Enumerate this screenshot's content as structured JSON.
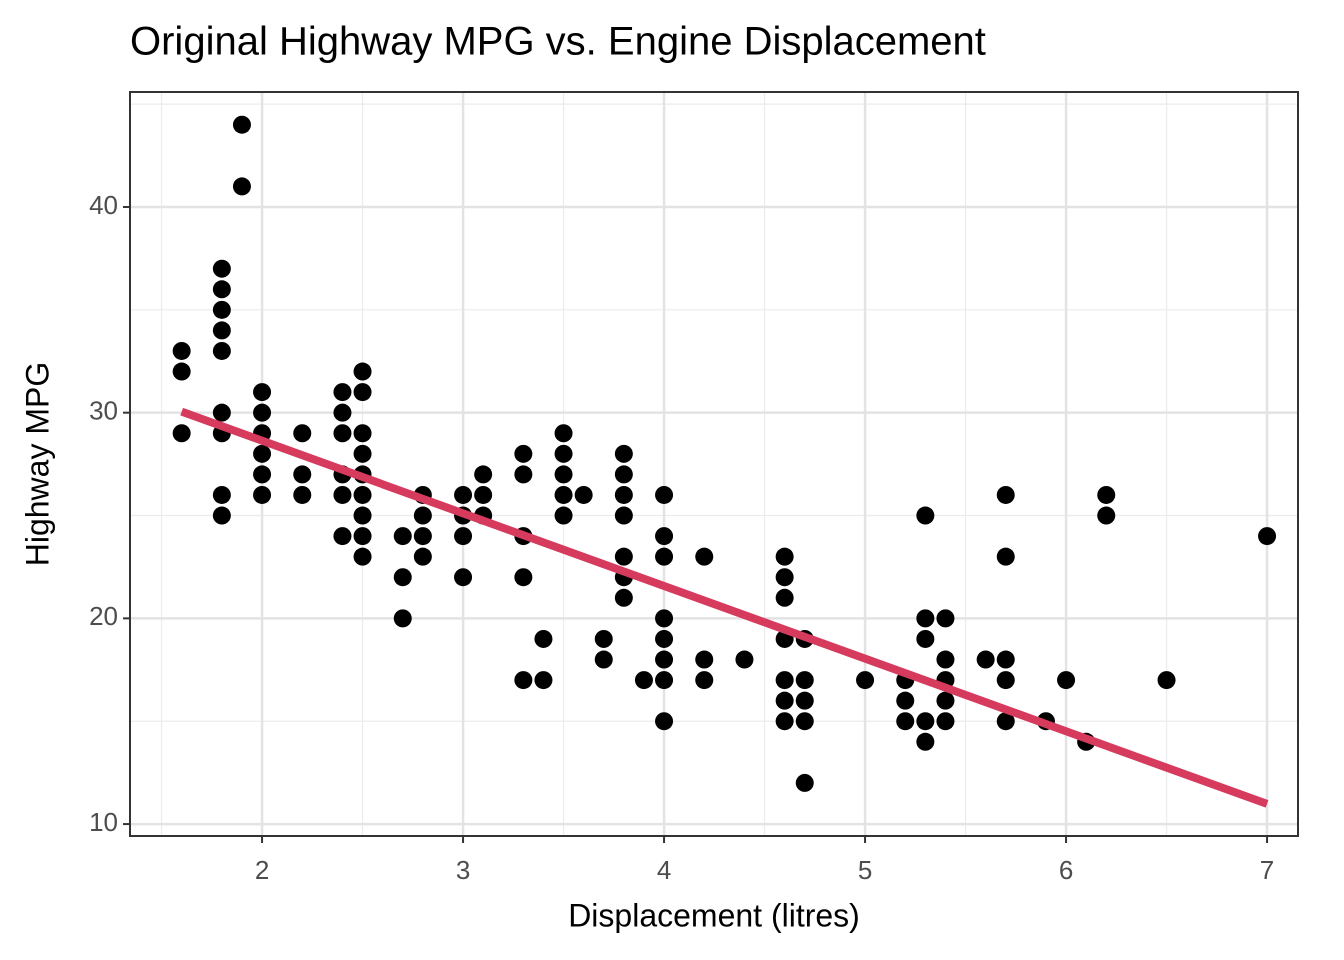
{
  "chart_data": {
    "type": "scatter",
    "title": "Original Highway MPG vs. Engine Displacement",
    "x_label": "Displacement (litres)",
    "y_label": "Highway MPG",
    "xlim": [
      1.343,
      7.154
    ],
    "ylim": [
      9.42,
      45.59
    ],
    "xticks": [
      2,
      3,
      4,
      5,
      6,
      7
    ],
    "yticks": [
      10,
      20,
      30,
      40
    ],
    "x_minor_ticks": [
      1.5,
      2.5,
      3.5,
      4.5,
      5.5,
      6.5
    ],
    "y_minor_ticks": [
      15,
      25,
      35,
      45
    ],
    "grid": true,
    "series": [
      {
        "type": "scatter",
        "color": "#000000",
        "x": [
          1.6,
          1.6,
          1.6,
          1.8,
          1.8,
          1.8,
          1.8,
          1.8,
          1.8,
          1.8,
          1.8,
          1.8,
          1.9,
          1.9,
          2.0,
          2.0,
          2.0,
          2.0,
          2.0,
          2.0,
          2.2,
          2.2,
          2.2,
          2.4,
          2.4,
          2.4,
          2.4,
          2.4,
          2.4,
          2.5,
          2.5,
          2.5,
          2.5,
          2.5,
          2.5,
          2.5,
          2.5,
          2.5,
          2.7,
          2.7,
          2.7,
          2.8,
          2.8,
          2.8,
          2.8,
          3.0,
          3.0,
          3.0,
          3.0,
          3.1,
          3.1,
          3.1,
          3.3,
          3.3,
          3.3,
          3.3,
          3.3,
          3.4,
          3.4,
          3.5,
          3.5,
          3.5,
          3.5,
          3.5,
          3.6,
          3.7,
          3.7,
          3.8,
          3.8,
          3.8,
          3.8,
          3.8,
          3.8,
          3.8,
          3.9,
          4.0,
          4.0,
          4.0,
          4.0,
          4.0,
          4.0,
          4.0,
          4.0,
          4.2,
          4.2,
          4.2,
          4.4,
          4.6,
          4.6,
          4.6,
          4.6,
          4.6,
          4.6,
          4.6,
          4.7,
          4.7,
          4.7,
          4.7,
          4.7,
          5.0,
          5.2,
          5.2,
          5.2,
          5.3,
          5.3,
          5.3,
          5.3,
          5.3,
          5.4,
          5.4,
          5.4,
          5.4,
          5.4,
          5.6,
          5.7,
          5.7,
          5.7,
          5.7,
          5.7,
          5.9,
          6.0,
          6.1,
          6.2,
          6.2,
          6.5,
          7.0
        ],
        "values": [
          33,
          32,
          29,
          37,
          36,
          35,
          34,
          33,
          30,
          29,
          26,
          25,
          44,
          41,
          31,
          30,
          29,
          28,
          27,
          26,
          29,
          27,
          26,
          31,
          30,
          29,
          27,
          26,
          24,
          32,
          31,
          29,
          28,
          27,
          26,
          25,
          24,
          23,
          24,
          22,
          20,
          26,
          25,
          24,
          23,
          26,
          25,
          24,
          22,
          27,
          26,
          25,
          28,
          27,
          24,
          22,
          17,
          19,
          17,
          29,
          28,
          27,
          26,
          25,
          26,
          19,
          18,
          28,
          27,
          26,
          25,
          23,
          22,
          21,
          17,
          26,
          24,
          23,
          20,
          19,
          18,
          17,
          15,
          23,
          18,
          17,
          18,
          23,
          22,
          21,
          19,
          17,
          16,
          15,
          19,
          17,
          16,
          15,
          12,
          17,
          17,
          16,
          15,
          25,
          20,
          19,
          15,
          14,
          20,
          18,
          17,
          16,
          15,
          18,
          26,
          23,
          18,
          17,
          15,
          15,
          17,
          14,
          26,
          25,
          17,
          24
        ]
      },
      {
        "type": "line",
        "color": "#d63b5e",
        "x": [
          1.6,
          7.0
        ],
        "values": [
          30.05,
          10.98
        ]
      }
    ]
  }
}
